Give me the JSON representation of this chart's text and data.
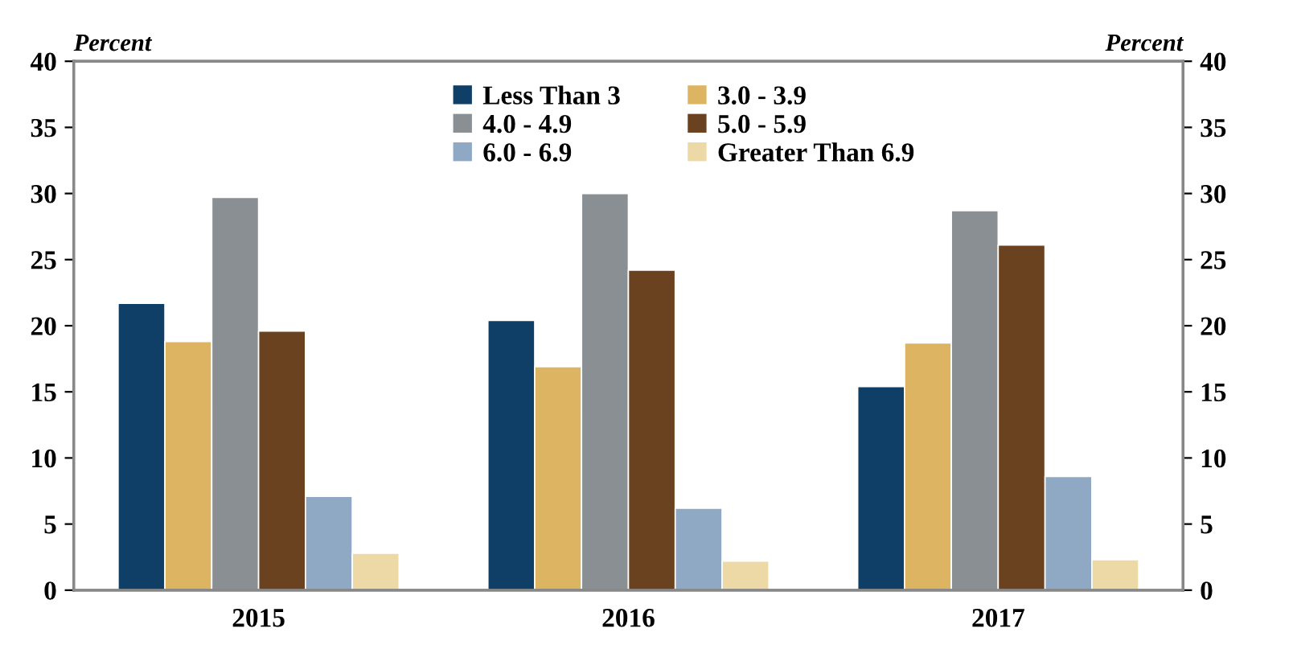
{
  "chart_data": {
    "type": "bar",
    "categories": [
      "2015",
      "2016",
      "2017"
    ],
    "series": [
      {
        "name": "Less Than 3",
        "color": "#0f3f66",
        "values": [
          21.7,
          20.4,
          15.4
        ]
      },
      {
        "name": "3.0 - 3.9",
        "color": "#dcb462",
        "values": [
          18.8,
          16.9,
          18.7
        ]
      },
      {
        "name": "4.0 - 4.9",
        "color": "#8a8f94",
        "values": [
          29.7,
          30.0,
          28.7
        ]
      },
      {
        "name": "5.0 - 5.9",
        "color": "#6b4220",
        "values": [
          19.6,
          24.2,
          26.1
        ]
      },
      {
        "name": "6.0 - 6.9",
        "color": "#8fa8c4",
        "values": [
          7.1,
          6.2,
          8.6
        ]
      },
      {
        "name": "Greater Than 6.9",
        "color": "#ecd9a5",
        "values": [
          2.8,
          2.2,
          2.3
        ]
      }
    ],
    "ylabel": "Percent",
    "y2label": "Percent",
    "ylim": [
      0,
      40
    ],
    "yticks": [
      0,
      5,
      10,
      15,
      20,
      25,
      30,
      35,
      40
    ],
    "y2lim": [
      0,
      40
    ],
    "y2ticks": [
      0,
      5,
      10,
      15,
      20,
      25,
      30,
      35,
      40
    ],
    "legend": "top",
    "grid": false
  }
}
